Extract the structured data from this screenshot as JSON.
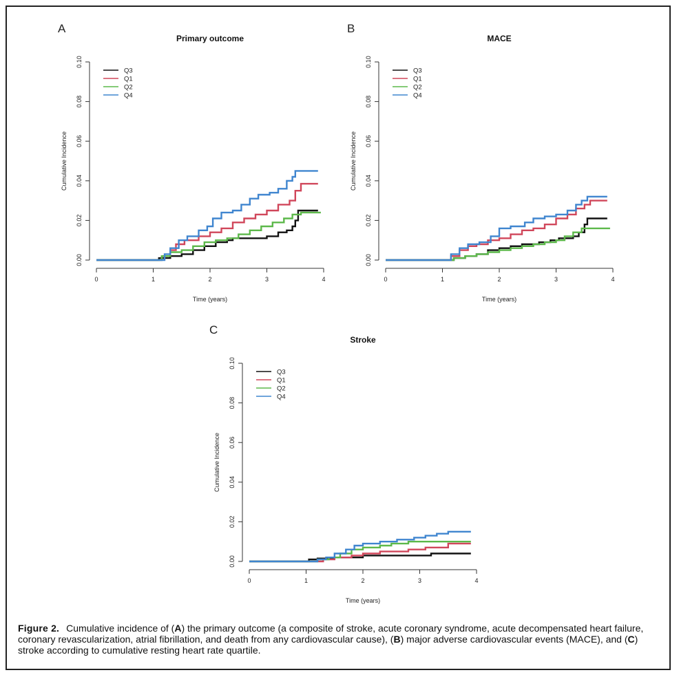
{
  "caption": {
    "label": "Figure 2.",
    "parts": [
      "Cumulative incidence of (",
      "A",
      ") the primary outcome (a composite of stroke, acute coronary syndrome, acute decompensated heart failure, coronary revascularization, atrial fibrillation, and death from any cardiovascular cause), (",
      "B",
      ") major adverse cardiovascular events (MACE), and (",
      "C",
      ") stroke according to cumulative resting heart rate quartile."
    ]
  },
  "chart_data": [
    {
      "panel": "A",
      "type": "line",
      "title": "Primary outcome",
      "xlabel": "Time (years)",
      "ylabel": "Cumulative Incidence",
      "xlim": [
        0,
        4
      ],
      "ylim": [
        0,
        0.1
      ],
      "xticks": [
        "0",
        "1",
        "2",
        "3",
        "4"
      ],
      "yticks": [
        "0.00",
        "0.02",
        "0.04",
        "0.06",
        "0.08",
        "0.10"
      ],
      "legend_position": "top-left",
      "series": [
        {
          "name": "Q3",
          "color": "#111111",
          "points": [
            [
              0,
              0
            ],
            [
              1.05,
              0
            ],
            [
              1.1,
              0.001
            ],
            [
              1.3,
              0.002
            ],
            [
              1.5,
              0.003
            ],
            [
              1.7,
              0.005
            ],
            [
              1.9,
              0.007
            ],
            [
              2.1,
              0.009
            ],
            [
              2.3,
              0.01
            ],
            [
              2.4,
              0.011
            ],
            [
              2.8,
              0.011
            ],
            [
              3.0,
              0.012
            ],
            [
              3.2,
              0.014
            ],
            [
              3.35,
              0.015
            ],
            [
              3.45,
              0.017
            ],
            [
              3.5,
              0.02
            ],
            [
              3.55,
              0.025
            ],
            [
              3.9,
              0.025
            ]
          ]
        },
        {
          "name": "Q1",
          "color": "#d0465a",
          "points": [
            [
              0,
              0
            ],
            [
              1.05,
              0
            ],
            [
              1.15,
              0.002
            ],
            [
              1.3,
              0.005
            ],
            [
              1.4,
              0.008
            ],
            [
              1.55,
              0.01
            ],
            [
              1.8,
              0.012
            ],
            [
              2.0,
              0.014
            ],
            [
              2.2,
              0.016
            ],
            [
              2.4,
              0.019
            ],
            [
              2.6,
              0.021
            ],
            [
              2.8,
              0.023
            ],
            [
              3.0,
              0.025
            ],
            [
              3.2,
              0.028
            ],
            [
              3.4,
              0.03
            ],
            [
              3.5,
              0.035
            ],
            [
              3.6,
              0.0385
            ],
            [
              3.9,
              0.0385
            ]
          ]
        },
        {
          "name": "Q2",
          "color": "#5cb84a",
          "points": [
            [
              0,
              0
            ],
            [
              1.05,
              0
            ],
            [
              1.15,
              0.002
            ],
            [
              1.3,
              0.004
            ],
            [
              1.5,
              0.005
            ],
            [
              1.7,
              0.007
            ],
            [
              1.9,
              0.009
            ],
            [
              2.1,
              0.01
            ],
            [
              2.3,
              0.011
            ],
            [
              2.5,
              0.013
            ],
            [
              2.7,
              0.015
            ],
            [
              2.9,
              0.017
            ],
            [
              3.1,
              0.019
            ],
            [
              3.3,
              0.021
            ],
            [
              3.45,
              0.023
            ],
            [
              3.6,
              0.024
            ],
            [
              3.95,
              0.024
            ]
          ]
        },
        {
          "name": "Q4",
          "color": "#3f85cf",
          "points": [
            [
              0,
              0
            ],
            [
              1.05,
              0
            ],
            [
              1.2,
              0.003
            ],
            [
              1.3,
              0.006
            ],
            [
              1.45,
              0.01
            ],
            [
              1.6,
              0.012
            ],
            [
              1.8,
              0.015
            ],
            [
              1.95,
              0.017
            ],
            [
              2.05,
              0.021
            ],
            [
              2.2,
              0.024
            ],
            [
              2.4,
              0.025
            ],
            [
              2.55,
              0.028
            ],
            [
              2.7,
              0.031
            ],
            [
              2.85,
              0.033
            ],
            [
              3.05,
              0.034
            ],
            [
              3.2,
              0.036
            ],
            [
              3.35,
              0.04
            ],
            [
              3.45,
              0.042
            ],
            [
              3.5,
              0.045
            ],
            [
              3.9,
              0.045
            ]
          ]
        }
      ]
    },
    {
      "panel": "B",
      "type": "line",
      "title": "MACE",
      "xlabel": "Time (years)",
      "ylabel": "Cumulative Incidence",
      "xlim": [
        0,
        4
      ],
      "ylim": [
        0,
        0.1
      ],
      "xticks": [
        "0",
        "1",
        "2",
        "3",
        "4"
      ],
      "yticks": [
        "0.00",
        "0.02",
        "0.04",
        "0.06",
        "0.08",
        "0.10"
      ],
      "legend_position": "top-left",
      "series": [
        {
          "name": "Q3",
          "color": "#111111",
          "points": [
            [
              0,
              0
            ],
            [
              1.1,
              0
            ],
            [
              1.2,
              0.001
            ],
            [
              1.4,
              0.002
            ],
            [
              1.6,
              0.003
            ],
            [
              1.8,
              0.005
            ],
            [
              2.0,
              0.006
            ],
            [
              2.2,
              0.007
            ],
            [
              2.4,
              0.008
            ],
            [
              2.7,
              0.009
            ],
            [
              2.9,
              0.01
            ],
            [
              3.05,
              0.011
            ],
            [
              3.3,
              0.012
            ],
            [
              3.4,
              0.014
            ],
            [
              3.5,
              0.018
            ],
            [
              3.55,
              0.021
            ],
            [
              3.9,
              0.021
            ]
          ]
        },
        {
          "name": "Q1",
          "color": "#d0465a",
          "points": [
            [
              0,
              0
            ],
            [
              1.05,
              0
            ],
            [
              1.15,
              0.002
            ],
            [
              1.3,
              0.005
            ],
            [
              1.45,
              0.007
            ],
            [
              1.6,
              0.008
            ],
            [
              1.8,
              0.01
            ],
            [
              2.0,
              0.011
            ],
            [
              2.2,
              0.013
            ],
            [
              2.4,
              0.015
            ],
            [
              2.6,
              0.016
            ],
            [
              2.8,
              0.018
            ],
            [
              3.0,
              0.021
            ],
            [
              3.2,
              0.023
            ],
            [
              3.35,
              0.026
            ],
            [
              3.5,
              0.028
            ],
            [
              3.6,
              0.03
            ],
            [
              3.9,
              0.03
            ]
          ]
        },
        {
          "name": "Q2",
          "color": "#5cb84a",
          "points": [
            [
              0,
              0
            ],
            [
              1.1,
              0
            ],
            [
              1.2,
              0.001
            ],
            [
              1.4,
              0.002
            ],
            [
              1.6,
              0.003
            ],
            [
              1.8,
              0.004
            ],
            [
              2.0,
              0.005
            ],
            [
              2.2,
              0.006
            ],
            [
              2.4,
              0.007
            ],
            [
              2.6,
              0.008
            ],
            [
              2.8,
              0.009
            ],
            [
              3.0,
              0.01
            ],
            [
              3.15,
              0.012
            ],
            [
              3.3,
              0.014
            ],
            [
              3.45,
              0.016
            ],
            [
              3.95,
              0.016
            ]
          ]
        },
        {
          "name": "Q4",
          "color": "#3f85cf",
          "points": [
            [
              0,
              0
            ],
            [
              1.05,
              0
            ],
            [
              1.15,
              0.003
            ],
            [
              1.3,
              0.006
            ],
            [
              1.45,
              0.008
            ],
            [
              1.65,
              0.009
            ],
            [
              1.85,
              0.012
            ],
            [
              2.0,
              0.016
            ],
            [
              2.2,
              0.017
            ],
            [
              2.45,
              0.019
            ],
            [
              2.6,
              0.021
            ],
            [
              2.8,
              0.022
            ],
            [
              3.0,
              0.023
            ],
            [
              3.2,
              0.025
            ],
            [
              3.35,
              0.028
            ],
            [
              3.45,
              0.03
            ],
            [
              3.55,
              0.032
            ],
            [
              3.9,
              0.032
            ]
          ]
        }
      ]
    },
    {
      "panel": "C",
      "type": "line",
      "title": "Stroke",
      "xlabel": "Time (years)",
      "ylabel": "Cumulative Incidence",
      "xlim": [
        0,
        4
      ],
      "ylim": [
        0,
        0.1
      ],
      "xticks": [
        "0",
        "1",
        "2",
        "3",
        "4"
      ],
      "yticks": [
        "0.00",
        "0.02",
        "0.04",
        "0.06",
        "0.08",
        "0.10"
      ],
      "legend_position": "top-left",
      "series": [
        {
          "name": "Q3",
          "color": "#111111",
          "points": [
            [
              0,
              0
            ],
            [
              1.0,
              0
            ],
            [
              1.05,
              0.001
            ],
            [
              1.2,
              0.0015
            ],
            [
              1.5,
              0.002
            ],
            [
              2.0,
              0.003
            ],
            [
              2.3,
              0.003
            ],
            [
              3.0,
              0.003
            ],
            [
              3.2,
              0.004
            ],
            [
              3.9,
              0.004
            ]
          ]
        },
        {
          "name": "Q1",
          "color": "#d0465a",
          "points": [
            [
              0,
              0
            ],
            [
              1.2,
              0
            ],
            [
              1.3,
              0.001
            ],
            [
              1.5,
              0.002
            ],
            [
              1.8,
              0.003
            ],
            [
              2.0,
              0.004
            ],
            [
              2.3,
              0.005
            ],
            [
              2.6,
              0.005
            ],
            [
              2.8,
              0.006
            ],
            [
              3.1,
              0.007
            ],
            [
              3.4,
              0.007
            ],
            [
              3.5,
              0.009
            ],
            [
              3.9,
              0.009
            ]
          ]
        },
        {
          "name": "Q2",
          "color": "#5cb84a",
          "points": [
            [
              0,
              0
            ],
            [
              1.1,
              0
            ],
            [
              1.2,
              0.001
            ],
            [
              1.4,
              0.002
            ],
            [
              1.6,
              0.004
            ],
            [
              1.8,
              0.006
            ],
            [
              2.0,
              0.007
            ],
            [
              2.3,
              0.008
            ],
            [
              2.5,
              0.009
            ],
            [
              2.8,
              0.01
            ],
            [
              3.9,
              0.01
            ]
          ]
        },
        {
          "name": "Q4",
          "color": "#3f85cf",
          "points": [
            [
              0,
              0
            ],
            [
              1.1,
              0
            ],
            [
              1.2,
              0.001
            ],
            [
              1.35,
              0.002
            ],
            [
              1.5,
              0.004
            ],
            [
              1.7,
              0.006
            ],
            [
              1.85,
              0.008
            ],
            [
              2.0,
              0.009
            ],
            [
              2.3,
              0.01
            ],
            [
              2.6,
              0.011
            ],
            [
              2.9,
              0.012
            ],
            [
              3.1,
              0.013
            ],
            [
              3.3,
              0.014
            ],
            [
              3.5,
              0.015
            ],
            [
              3.9,
              0.015
            ]
          ]
        }
      ]
    }
  ]
}
